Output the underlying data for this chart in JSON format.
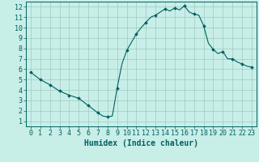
{
  "xlabel": "Humidex (Indice chaleur)",
  "ylabel": "",
  "xlim": [
    -0.5,
    23.5
  ],
  "ylim": [
    0.5,
    12.5
  ],
  "xticks": [
    0,
    1,
    2,
    3,
    4,
    5,
    6,
    7,
    8,
    9,
    10,
    11,
    12,
    13,
    14,
    15,
    16,
    17,
    18,
    19,
    20,
    21,
    22,
    23
  ],
  "yticks": [
    1,
    2,
    3,
    4,
    5,
    6,
    7,
    8,
    9,
    10,
    11,
    12
  ],
  "background_color": "#c8eee8",
  "grid_color": "#a0c8c0",
  "line_color": "#006060",
  "marker": "D",
  "marker_size": 1.8,
  "x": [
    0,
    1,
    2,
    3,
    4,
    5,
    6,
    7,
    7.5,
    8,
    8.5,
    9,
    9.5,
    10,
    10.5,
    11,
    11.5,
    12,
    12.5,
    13,
    13.5,
    14,
    14.5,
    15,
    15.5,
    16,
    16.5,
    17,
    17.5,
    18,
    18.5,
    19,
    19.5,
    20,
    20.5,
    21,
    21.5,
    22,
    22.5,
    23
  ],
  "y": [
    5.7,
    5.0,
    4.5,
    3.9,
    3.5,
    3.2,
    2.5,
    1.8,
    1.5,
    1.4,
    1.5,
    4.2,
    6.5,
    7.8,
    8.6,
    9.4,
    10.0,
    10.5,
    11.0,
    11.2,
    11.5,
    11.8,
    11.6,
    11.9,
    11.7,
    12.1,
    11.5,
    11.3,
    11.2,
    10.2,
    8.5,
    7.9,
    7.5,
    7.7,
    7.0,
    7.0,
    6.7,
    6.5,
    6.3,
    6.2
  ],
  "x_markers": [
    0,
    1,
    2,
    3,
    4,
    5,
    6,
    7,
    8,
    9,
    10,
    11,
    12,
    13,
    14,
    15,
    16,
    17,
    18,
    19,
    20,
    21,
    22,
    23
  ],
  "y_markers": [
    5.7,
    5.0,
    4.5,
    3.9,
    3.5,
    3.2,
    2.5,
    1.8,
    1.4,
    4.2,
    7.8,
    9.4,
    10.5,
    11.2,
    11.8,
    11.9,
    12.1,
    11.3,
    10.2,
    7.9,
    7.7,
    7.0,
    6.5,
    6.2
  ],
  "tick_fontsize": 6,
  "xlabel_fontsize": 7
}
